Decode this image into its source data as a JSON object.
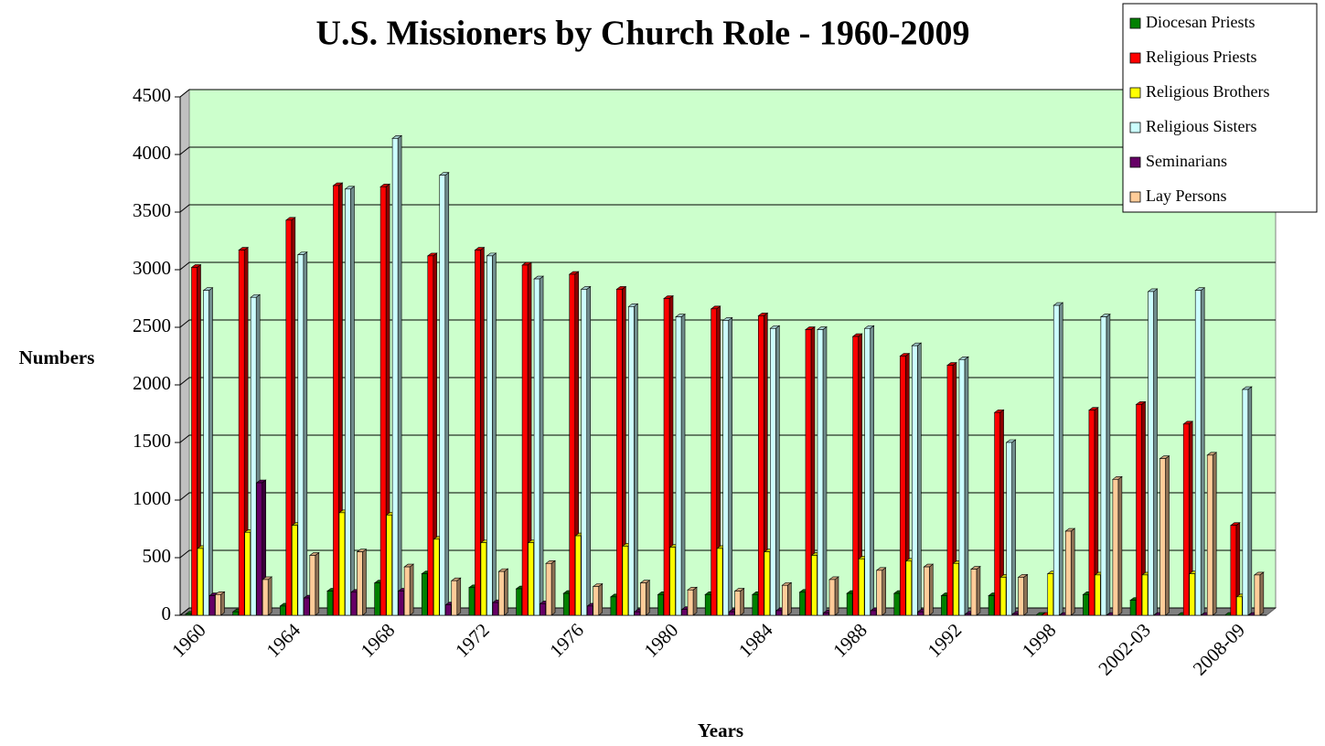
{
  "chart_data": {
    "type": "bar3d",
    "title": "U.S. Missioners by Church Role - 1960-2009",
    "x_label": "Years",
    "y_label": "Numbers",
    "categories": [
      "1960",
      null,
      "1964",
      null,
      "1968",
      null,
      "1972",
      null,
      "1976",
      null,
      "1980",
      null,
      "1984",
      null,
      "1988",
      null,
      "1992",
      null,
      "1998",
      null,
      "2002-03",
      null,
      "2008-09"
    ],
    "ylim": [
      0,
      4500
    ],
    "yticks": [
      0,
      500,
      1000,
      1500,
      2000,
      2500,
      3000,
      3500,
      4000,
      4500
    ],
    "grid": true,
    "legend": "top-right",
    "wall_color": "#ccffcc",
    "series": [
      {
        "name": "Diocesan Priests",
        "color": "#008000",
        "values": [
          10,
          30,
          80,
          210,
          280,
          360,
          240,
          230,
          190,
          160,
          180,
          180,
          180,
          200,
          190,
          190,
          170,
          170,
          0,
          180,
          130,
          0,
          0
        ]
      },
      {
        "name": "Religious Priests",
        "color": "#ff0000",
        "values": [
          3020,
          3170,
          3430,
          3730,
          3720,
          3120,
          3170,
          3040,
          2960,
          2830,
          2750,
          2660,
          2600,
          2480,
          2420,
          2250,
          2170,
          1760,
          0,
          1780,
          1830,
          1660,
          780
        ]
      },
      {
        "name": "Religious Brothers",
        "color": "#ffff00",
        "values": [
          580,
          720,
          780,
          890,
          870,
          660,
          630,
          630,
          690,
          600,
          590,
          580,
          550,
          520,
          490,
          470,
          450,
          330,
          360,
          350,
          350,
          360,
          160
        ]
      },
      {
        "name": "Religious Sisters",
        "color": "#ccffff",
        "values": [
          2820,
          2760,
          3130,
          3700,
          4140,
          3820,
          3120,
          2920,
          2830,
          2680,
          2590,
          2560,
          2490,
          2480,
          2490,
          2340,
          2220,
          1500,
          2690,
          2590,
          2810,
          2820,
          1960
        ]
      },
      {
        "name": "Seminarians",
        "color": "#660066",
        "values": [
          170,
          1150,
          150,
          200,
          210,
          90,
          110,
          100,
          80,
          30,
          50,
          30,
          40,
          20,
          40,
          30,
          10,
          10,
          0,
          0,
          0,
          0,
          0
        ]
      },
      {
        "name": "Lay Persons",
        "color": "#ffcc99",
        "values": [
          180,
          310,
          520,
          550,
          420,
          300,
          380,
          450,
          250,
          280,
          220,
          210,
          260,
          310,
          390,
          420,
          400,
          330,
          730,
          1180,
          1360,
          1390,
          350
        ]
      }
    ]
  }
}
